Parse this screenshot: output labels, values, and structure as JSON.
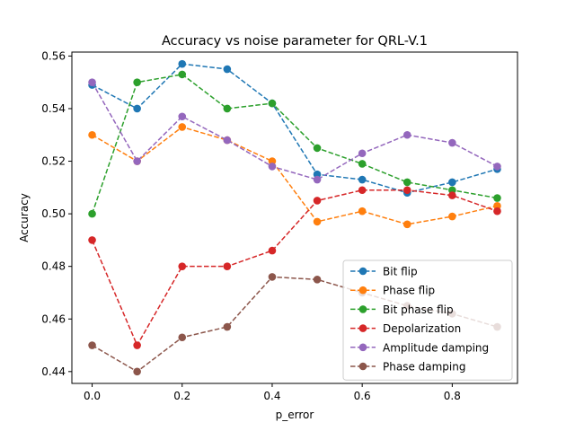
{
  "chart_data": {
    "type": "line",
    "title": "Accuracy vs noise parameter for QRL-V.1",
    "xlabel": "p_error",
    "ylabel": "Accuracy",
    "xlim": [
      -0.045,
      0.945
    ],
    "ylim": [
      0.4355,
      0.5615
    ],
    "xticks": [
      0.0,
      0.2,
      0.4,
      0.6,
      0.8
    ],
    "xtick_labels": [
      "0.0",
      "0.2",
      "0.4",
      "0.6",
      "0.8"
    ],
    "yticks": [
      0.44,
      0.46,
      0.48,
      0.5,
      0.52,
      0.54,
      0.56
    ],
    "ytick_labels": [
      "0.44",
      "0.46",
      "0.48",
      "0.50",
      "0.52",
      "0.54",
      "0.56"
    ],
    "grid": false,
    "legend_position": "lower-right",
    "x": [
      0.0,
      0.1,
      0.2,
      0.3,
      0.4,
      0.5,
      0.6,
      0.7,
      0.8,
      0.9
    ],
    "series": [
      {
        "name": "Bit flip",
        "color": "#1f77b4",
        "values": [
          0.549,
          0.54,
          0.557,
          0.555,
          0.542,
          0.515,
          0.513,
          0.508,
          0.512,
          0.517
        ]
      },
      {
        "name": "Phase flip",
        "color": "#ff7f0e",
        "values": [
          0.53,
          0.52,
          0.533,
          0.528,
          0.52,
          0.497,
          0.501,
          0.496,
          0.499,
          0.503
        ]
      },
      {
        "name": "Bit phase flip",
        "color": "#2ca02c",
        "values": [
          0.5,
          0.55,
          0.553,
          0.54,
          0.542,
          0.525,
          0.519,
          0.512,
          0.509,
          0.506
        ]
      },
      {
        "name": "Depolarization",
        "color": "#d62728",
        "values": [
          0.49,
          0.45,
          0.48,
          0.48,
          0.486,
          0.505,
          0.509,
          0.509,
          0.507,
          0.501
        ]
      },
      {
        "name": "Amplitude damping",
        "color": "#9467bd",
        "values": [
          0.55,
          0.52,
          0.537,
          0.528,
          0.518,
          0.513,
          0.523,
          0.53,
          0.527,
          0.518
        ]
      },
      {
        "name": "Phase damping",
        "color": "#8c564b",
        "values": [
          0.45,
          0.44,
          0.453,
          0.457,
          0.476,
          0.475,
          0.47,
          0.465,
          0.462,
          0.457
        ]
      }
    ]
  }
}
